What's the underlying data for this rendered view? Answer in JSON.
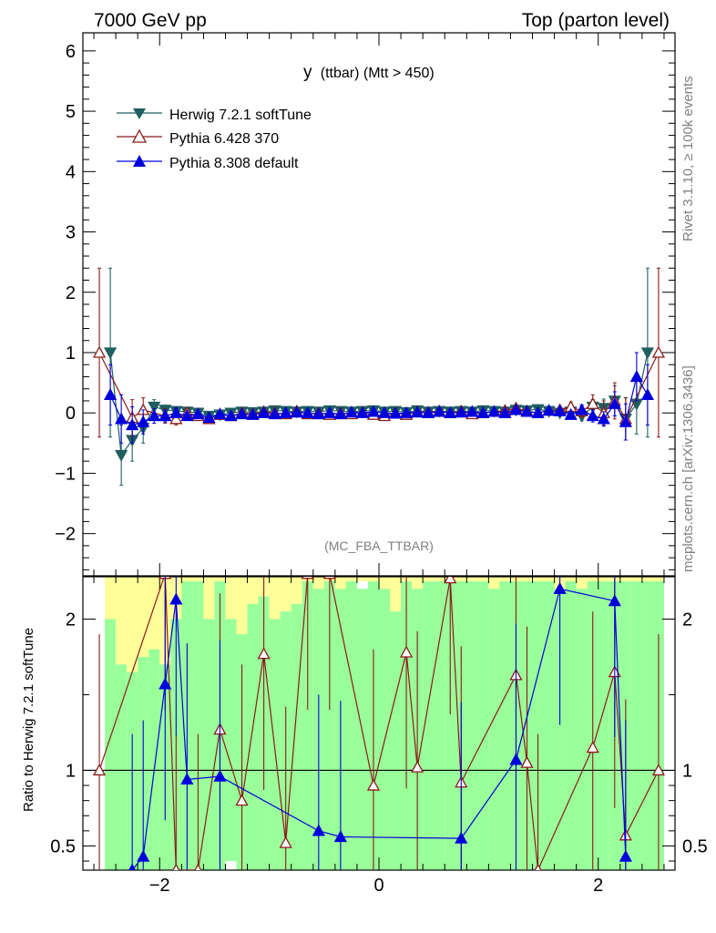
{
  "header": {
    "left": "7000 GeV pp",
    "right": "Top (parton level)"
  },
  "side_labels": {
    "rivet": "Rivet 3.1.10, ≥ 100k events",
    "mcplots": "mcplots.cern.ch [arXiv:1306.3436]"
  },
  "chart_data": [
    {
      "type": "line",
      "panel": "main",
      "title": "y",
      "title_suffix": "(ttbar) (Mtt > 450)",
      "watermark": "(MC_FBA_TTBAR)",
      "xlim": [
        -2.7,
        2.7
      ],
      "ylim": [
        -2.7,
        6.3
      ],
      "yticks": [
        -2,
        -1,
        0,
        1,
        2,
        3,
        4,
        5,
        6
      ],
      "ytick_labels": [
        "−2",
        "−1",
        "0",
        "1",
        "2",
        "3",
        "4",
        "5",
        "6"
      ],
      "legend": {
        "position": "top-left"
      },
      "series": [
        {
          "name": "Herwig 7.2.1 softTune",
          "color": "#1f5f5f",
          "marker": "triangle-down",
          "x": [
            -2.45,
            -2.35,
            -2.25,
            -2.15,
            -2.05,
            -1.95,
            -1.85,
            -1.75,
            -1.65,
            -1.55,
            -1.45,
            -1.35,
            -1.25,
            -1.15,
            -1.05,
            -0.95,
            -0.85,
            -0.75,
            -0.65,
            -0.55,
            -0.45,
            -0.35,
            -0.25,
            -0.15,
            -0.05,
            0.05,
            0.15,
            0.25,
            0.35,
            0.45,
            0.55,
            0.65,
            0.75,
            0.85,
            0.95,
            1.05,
            1.15,
            1.25,
            1.35,
            1.45,
            1.55,
            1.65,
            1.75,
            1.85,
            1.95,
            2.05,
            2.15,
            2.25,
            2.35,
            2.45
          ],
          "y": [
            1.0,
            -0.7,
            -0.45,
            -0.25,
            0.1,
            0.05,
            0.03,
            0.02,
            0.0,
            -0.05,
            -0.03,
            0.0,
            0.02,
            0.01,
            0.02,
            0.04,
            0.03,
            0.02,
            0.03,
            0.02,
            0.04,
            0.03,
            0.02,
            0.03,
            0.04,
            0.02,
            0.03,
            0.01,
            0.04,
            0.02,
            0.03,
            0.02,
            0.03,
            0.02,
            0.04,
            0.03,
            0.02,
            0.05,
            0.04,
            0.06,
            0.03,
            0.0,
            0.02,
            -0.05,
            0.1,
            0.08,
            0.2,
            -0.1,
            0.15,
            1.0
          ],
          "err": [
            1.4,
            0.5,
            0.35,
            0.25,
            0.12,
            0.08,
            0.06,
            0.05,
            0.05,
            0.04,
            0.04,
            0.03,
            0.03,
            0.03,
            0.03,
            0.03,
            0.03,
            0.03,
            0.03,
            0.03,
            0.03,
            0.03,
            0.03,
            0.03,
            0.03,
            0.03,
            0.03,
            0.03,
            0.03,
            0.03,
            0.03,
            0.03,
            0.03,
            0.03,
            0.03,
            0.03,
            0.03,
            0.04,
            0.04,
            0.04,
            0.05,
            0.05,
            0.06,
            0.08,
            0.12,
            0.15,
            0.25,
            0.35,
            0.5,
            1.4
          ]
        },
        {
          "name": "Pythia 6.428 370",
          "color": "#8b1a1a",
          "marker": "triangle-open",
          "x": [
            -2.55,
            -2.25,
            -2.15,
            -1.95,
            -1.85,
            -1.75,
            -1.65,
            -1.55,
            -1.45,
            -1.35,
            -1.25,
            -1.15,
            -1.05,
            -0.95,
            -0.85,
            -0.75,
            -0.65,
            -0.55,
            -0.45,
            -0.35,
            -0.25,
            -0.15,
            -0.05,
            0.05,
            0.15,
            0.25,
            0.35,
            0.45,
            0.55,
            0.65,
            0.75,
            0.85,
            0.95,
            1.05,
            1.15,
            1.25,
            1.35,
            1.45,
            1.55,
            1.65,
            1.75,
            1.85,
            1.95,
            2.05,
            2.15,
            2.25,
            2.55
          ],
          "y": [
            1.0,
            -0.08,
            0.05,
            -0.05,
            -0.1,
            0.0,
            -0.05,
            -0.1,
            -0.03,
            -0.05,
            0.0,
            -0.02,
            0.02,
            0.0,
            -0.02,
            0.03,
            -0.02,
            0.0,
            -0.03,
            0.0,
            -0.02,
            0.01,
            -0.03,
            -0.05,
            0.0,
            -0.03,
            0.02,
            0.01,
            0.03,
            0.0,
            0.03,
            -0.02,
            0.0,
            0.02,
            0.04,
            0.08,
            0.03,
            0.0,
            0.04,
            0.05,
            0.1,
            0.03,
            0.15,
            0.0,
            0.2,
            -0.1,
            1.0
          ],
          "err": [
            1.4,
            0.3,
            0.2,
            0.12,
            0.1,
            0.08,
            0.06,
            0.05,
            0.05,
            0.04,
            0.04,
            0.03,
            0.03,
            0.03,
            0.03,
            0.03,
            0.03,
            0.03,
            0.03,
            0.03,
            0.03,
            0.03,
            0.03,
            0.03,
            0.03,
            0.03,
            0.03,
            0.03,
            0.03,
            0.03,
            0.03,
            0.03,
            0.03,
            0.03,
            0.03,
            0.04,
            0.04,
            0.04,
            0.05,
            0.06,
            0.08,
            0.1,
            0.15,
            0.2,
            0.3,
            0.35,
            1.4
          ]
        },
        {
          "name": "Pythia 8.308 default",
          "color": "#0000dd",
          "marker": "triangle-up",
          "x": [
            -2.45,
            -2.35,
            -2.25,
            -2.15,
            -2.05,
            -1.95,
            -1.85,
            -1.75,
            -1.65,
            -1.55,
            -1.45,
            -1.35,
            -1.25,
            -1.15,
            -1.05,
            -0.95,
            -0.85,
            -0.75,
            -0.65,
            -0.55,
            -0.45,
            -0.35,
            -0.25,
            -0.15,
            -0.05,
            0.05,
            0.15,
            0.25,
            0.35,
            0.45,
            0.55,
            0.65,
            0.75,
            0.85,
            0.95,
            1.05,
            1.15,
            1.25,
            1.35,
            1.45,
            1.55,
            1.65,
            1.75,
            1.85,
            1.95,
            2.05,
            2.15,
            2.25,
            2.35,
            2.45
          ],
          "y": [
            0.3,
            -0.1,
            -0.2,
            -0.15,
            -0.05,
            -0.05,
            0.0,
            -0.05,
            -0.02,
            -0.08,
            -0.02,
            -0.05,
            -0.02,
            -0.03,
            0.0,
            -0.02,
            0.0,
            0.01,
            0.0,
            -0.02,
            0.0,
            -0.02,
            0.01,
            0.0,
            0.02,
            0.0,
            -0.01,
            0.0,
            0.01,
            0.0,
            0.02,
            0.0,
            0.01,
            0.02,
            0.0,
            0.02,
            0.0,
            0.05,
            0.02,
            0.0,
            0.04,
            0.03,
            -0.03,
            0.05,
            -0.05,
            -0.1,
            0.15,
            -0.15,
            0.6,
            0.3
          ],
          "err": [
            0.5,
            0.4,
            0.3,
            0.2,
            0.12,
            0.1,
            0.08,
            0.06,
            0.05,
            0.05,
            0.04,
            0.04,
            0.03,
            0.03,
            0.03,
            0.03,
            0.03,
            0.03,
            0.03,
            0.03,
            0.03,
            0.03,
            0.03,
            0.03,
            0.03,
            0.03,
            0.03,
            0.03,
            0.03,
            0.03,
            0.03,
            0.03,
            0.03,
            0.03,
            0.03,
            0.03,
            0.03,
            0.04,
            0.04,
            0.04,
            0.05,
            0.05,
            0.06,
            0.08,
            0.1,
            0.12,
            0.2,
            0.3,
            0.4,
            0.5
          ]
        }
      ]
    },
    {
      "type": "line",
      "panel": "ratio",
      "ylabel": "Ratio to Herwig 7.2.1 softTune",
      "xlim": [
        -2.7,
        2.7
      ],
      "ylim": [
        0.34,
        2.28
      ],
      "xticks": [
        -2,
        0,
        2
      ],
      "xtick_labels": [
        "−2",
        "0",
        "2"
      ],
      "yticks": [
        0.5,
        1,
        2
      ],
      "ytick_labels": [
        "0.5",
        "1",
        "2"
      ],
      "band_x": [
        -2.5,
        -2.4,
        -2.3,
        -2.2,
        -2.1,
        -2.0,
        -1.9,
        -1.8,
        -1.7,
        -1.6,
        -1.5,
        -1.4,
        -1.3,
        -1.2,
        -1.1,
        -1.0,
        -0.9,
        -0.8,
        -0.7,
        -0.6,
        -0.5,
        -0.4,
        -0.3,
        -0.2,
        -0.1,
        0.0,
        0.1,
        0.2,
        0.3,
        0.4,
        0.5,
        0.6,
        0.7,
        0.8,
        0.9,
        1.0,
        1.1,
        1.2,
        1.3,
        1.4,
        1.5,
        1.6,
        1.7,
        1.8,
        1.9,
        2.0,
        2.1,
        2.2,
        2.3,
        2.4,
        2.5,
        2.6
      ],
      "band_green_lo": [
        0.34,
        0.34,
        0.34,
        0.34,
        0.34,
        0.34,
        0.34,
        0.34,
        0.34,
        0.34,
        0.34,
        0.4,
        0.34,
        0.34,
        0.34,
        0.34,
        0.34,
        0.34,
        0.34,
        0.34,
        0.34,
        0.34,
        0.34,
        0.34,
        0.34,
        0.34,
        0.34,
        0.34,
        0.34,
        0.34,
        0.34,
        0.34,
        0.34,
        0.34,
        0.34,
        0.34,
        0.34,
        0.34,
        0.34,
        0.34,
        0.34,
        0.34,
        0.34,
        0.34,
        0.34,
        0.34,
        0.34,
        0.34,
        0.34,
        0.34,
        0.34
      ],
      "band_green_hi": [
        2.25,
        2.25,
        2.15,
        2.2,
        2.15,
        2.25,
        2.25,
        2.25,
        2.25,
        2.25,
        2.25,
        2.25,
        2.25,
        2.2,
        2.25,
        2.25,
        2.25,
        2.2,
        2.25,
        2.2,
        2.25,
        2.25,
        2.25,
        2.2,
        2.25,
        2.25,
        2.15,
        2.25,
        2.25,
        2.25,
        2.25,
        2.25,
        2.25,
        2.25,
        2.25,
        2.25,
        2.25,
        2.25,
        2.25,
        2.25,
        2.25,
        2.25,
        2.25,
        2.2,
        2.25,
        2.25,
        2.25,
        2.25,
        2.25,
        2.25,
        2.25
      ],
      "band_yellow_lo": [
        2.0,
        1.7,
        1.65,
        1.75,
        1.8,
        1.7,
        2.0,
        2.25,
        2.25,
        2.0,
        2.25,
        2.0,
        1.9,
        2.1,
        2.15,
        2.0,
        2.05,
        2.1,
        2.25,
        2.2,
        2.25,
        2.2,
        2.25,
        2.25,
        2.25,
        2.2,
        2.05,
        2.25,
        2.2,
        2.25,
        2.25,
        2.25,
        2.25,
        2.25,
        2.25,
        2.2,
        2.25,
        2.25,
        2.25,
        2.25,
        2.25,
        2.2,
        2.25,
        2.2,
        2.25,
        2.25,
        2.25,
        2.25,
        2.25,
        2.25,
        2.25
      ],
      "series": [
        {
          "name": "Pythia 6.428 370",
          "color": "#8b1a1a",
          "marker": "triangle-open",
          "x": [
            -2.55,
            -1.95,
            -1.85,
            -1.65,
            -1.45,
            -1.25,
            -1.05,
            -0.85,
            -0.65,
            -0.45,
            -0.05,
            0.25,
            0.35,
            0.65,
            0.75,
            1.25,
            1.35,
            1.45,
            1.95,
            2.15,
            2.25,
            2.55
          ],
          "y": [
            1.0,
            2.3,
            0.34,
            0.34,
            1.27,
            0.8,
            1.77,
            0.52,
            2.3,
            2.3,
            0.9,
            1.78,
            1.02,
            2.27,
            0.92,
            1.63,
            1.05,
            0.34,
            1.15,
            1.65,
            0.57,
            1.0
          ]
        },
        {
          "name": "Pythia 8.308 default",
          "color": "#0000dd",
          "marker": "triangle-up",
          "x": [
            -2.25,
            -2.15,
            -1.95,
            -1.85,
            -1.75,
            -1.45,
            -0.55,
            -0.35,
            0.75,
            1.25,
            1.65,
            2.15,
            2.25
          ],
          "y": [
            0.34,
            0.43,
            1.57,
            2.13,
            0.94,
            0.96,
            0.6,
            0.56,
            0.55,
            1.07,
            2.2,
            2.12,
            0.43
          ]
        }
      ]
    }
  ]
}
